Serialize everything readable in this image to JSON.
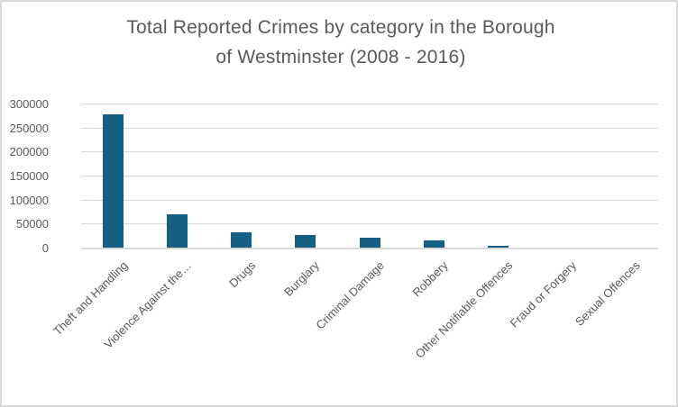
{
  "window": {
    "background": "#ffffff",
    "border_color": "#d9d9d9"
  },
  "chart_data": {
    "type": "bar",
    "title": "Total Reported Crimes by category in the Borough of Westminster (2008 - 2016)",
    "title_lines": [
      "Total Reported Crimes by category in the Borough",
      "of Westminster (2008 - 2016)"
    ],
    "categories": [
      "Theft and Handling",
      "Violence Against the…",
      "Drugs",
      "Burglary",
      "Criminal Damage",
      "Robbery",
      "Other Notifiable Offences",
      "Fraud or Forgery",
      "Sexual Offences"
    ],
    "values": [
      277000,
      70000,
      32000,
      26000,
      21000,
      15000,
      4500,
      800,
      400
    ],
    "xlabel": "",
    "ylabel": "",
    "ylim": [
      0,
      300000
    ],
    "ytick_step": 50000,
    "yticks": [
      0,
      50000,
      100000,
      150000,
      200000,
      250000,
      300000
    ],
    "grid": true,
    "legend_position": "none",
    "bar_color": "#156082",
    "gridline_color": "#d9d9d9",
    "axis_text_color": "#595959",
    "title_color": "#595959"
  }
}
